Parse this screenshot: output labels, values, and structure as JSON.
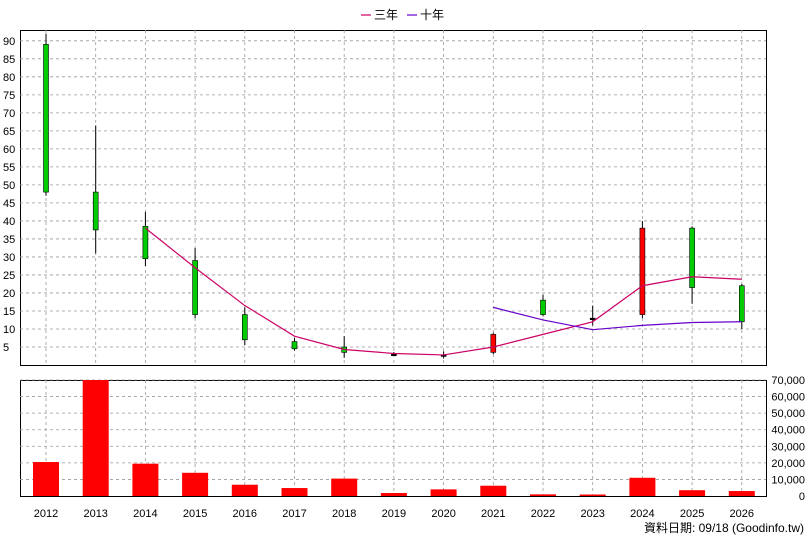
{
  "legend": [
    {
      "label": "三年",
      "color": "#cc0066"
    },
    {
      "label": "十年",
      "color": "#6600cc"
    }
  ],
  "footer": "資料日期: 09/18 (Goodinfo.tw)",
  "colors": {
    "up": "#ff0000",
    "down": "#00cc00",
    "volume": "#ff0000",
    "grid": "#999999"
  },
  "chart_data": {
    "type": "candlestick+bar",
    "categories": [
      "2012",
      "2013",
      "2014",
      "2015",
      "2016",
      "2017",
      "2018",
      "2019",
      "2020",
      "2021",
      "2022",
      "2023",
      "2024",
      "2025",
      "2026"
    ],
    "price": {
      "ylim": [
        0,
        93
      ],
      "yticks": [
        5,
        10,
        15,
        20,
        25,
        30,
        35,
        40,
        45,
        50,
        55,
        60,
        65,
        70,
        75,
        80,
        85,
        90
      ],
      "candles": [
        {
          "open": 89,
          "close": 48,
          "high": 92,
          "low": 47
        },
        {
          "open": 48,
          "close": 37.5,
          "high": 66.5,
          "low": 31
        },
        {
          "open": 38.5,
          "close": 29.5,
          "high": 42.5,
          "low": 27.5
        },
        {
          "open": 29,
          "close": 14,
          "high": 32.5,
          "low": 13
        },
        {
          "open": 14,
          "close": 7,
          "high": 16,
          "low": 5.5
        },
        {
          "open": 6.5,
          "close": 4.5,
          "high": 7.5,
          "low": 4
        },
        {
          "open": 5,
          "close": 3.5,
          "high": 8,
          "low": 2
        },
        {
          "open": 3,
          "close": 3,
          "high": 3.6,
          "low": 2.6
        },
        {
          "open": 2.8,
          "close": 2.8,
          "high": 3.8,
          "low": 1.8
        },
        {
          "open": 3.5,
          "close": 8.5,
          "high": 9,
          "low": 3
        },
        {
          "open": 18,
          "close": 14,
          "high": 19.5,
          "low": 13.5
        },
        {
          "open": 13,
          "close": 13,
          "high": 16.5,
          "low": 11
        },
        {
          "open": 14,
          "close": 38,
          "high": 40,
          "low": 13
        },
        {
          "open": 38,
          "close": 21.5,
          "high": 38.5,
          "low": 17
        },
        {
          "open": 22,
          "close": 12,
          "high": 22.5,
          "low": 10
        }
      ],
      "ma3": [
        null,
        null,
        38,
        27,
        16.5,
        8,
        4.3,
        3.2,
        2.8,
        5,
        8.5,
        12,
        22,
        24.5,
        23.8
      ],
      "ma10": [
        null,
        null,
        null,
        null,
        null,
        null,
        null,
        null,
        null,
        16,
        12.5,
        9.8,
        11,
        11.8,
        12
      ]
    },
    "volume": {
      "ylim": [
        0,
        70000
      ],
      "yticks": [
        0,
        10000,
        20000,
        30000,
        40000,
        50000,
        60000,
        70000
      ],
      "ytick_labels": [
        "0",
        "10,000",
        "20,000",
        "30,000",
        "40,000",
        "50,000",
        "60,000",
        "70,000"
      ],
      "values": [
        20500,
        70000,
        19500,
        14000,
        6800,
        4800,
        10500,
        1800,
        4000,
        6200,
        1000,
        900,
        11000,
        3500,
        3000
      ]
    }
  }
}
